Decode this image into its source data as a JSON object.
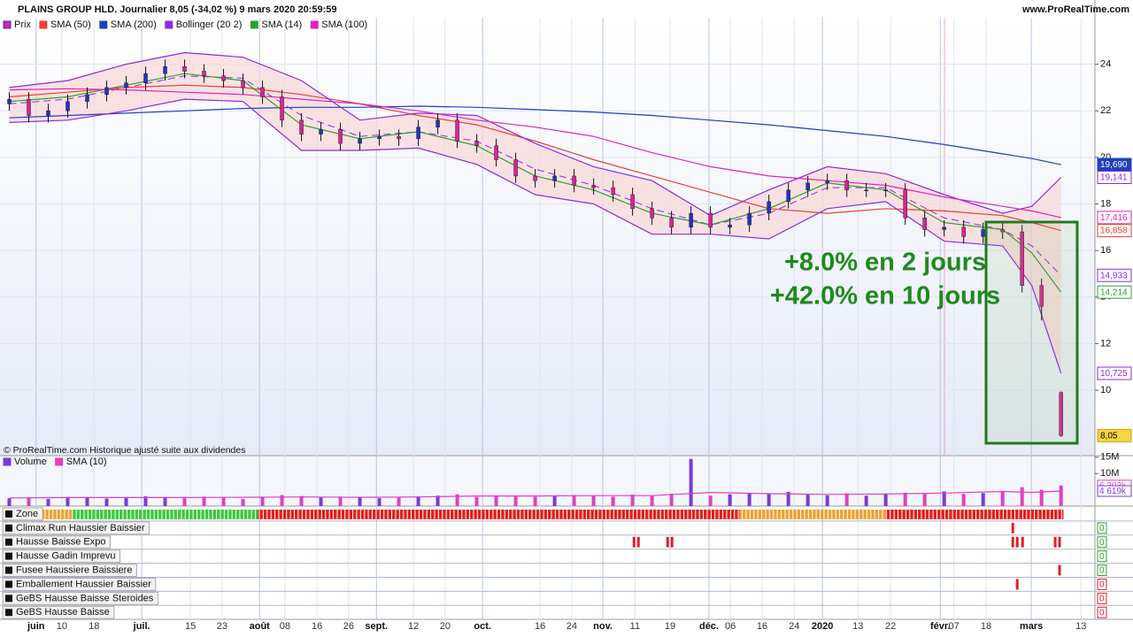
{
  "header": {
    "title": "PLAINS GROUP HLD. Journalier 8,05 (-34,02 %) 9 mars 2020 20:59:59",
    "site": "www.ProRealTime.com"
  },
  "chart_data": [
    {
      "type": "candlestick",
      "name": "Prix",
      "colors": {
        "up": "#2330c8",
        "down": "#e0209a"
      },
      "x": [
        1,
        5,
        9,
        13,
        17,
        21,
        25,
        29,
        33,
        37,
        41,
        45,
        49,
        53,
        57,
        61,
        65,
        69,
        73,
        77,
        81,
        85,
        89,
        93,
        97,
        101,
        105,
        109,
        113,
        117,
        121,
        125,
        129,
        133,
        137,
        141,
        145,
        149,
        153,
        157,
        161,
        165,
        169,
        173,
        177,
        181,
        185,
        189,
        193,
        197,
        201,
        205,
        209,
        213,
        217
      ],
      "open": [
        22.3,
        22.5,
        21.8,
        22.0,
        22.4,
        22.7,
        23.0,
        23.2,
        23.6,
        23.9,
        23.7,
        23.5,
        23.3,
        23.0,
        22.6,
        21.6,
        21.0,
        21.2,
        20.6,
        20.8,
        20.9,
        20.8,
        21.3,
        21.6,
        20.7,
        20.5,
        19.9,
        19.2,
        19.0,
        19.2,
        18.8,
        18.7,
        18.4,
        17.8,
        17.4,
        17.0,
        17.6,
        17.0,
        17.1,
        17.6,
        18.1,
        18.6,
        18.9,
        19.0,
        18.6,
        18.6,
        18.6,
        17.4,
        16.9,
        17.0,
        16.6,
        16.9,
        16.8,
        14.5,
        9.9
      ],
      "high": [
        22.8,
        22.8,
        22.3,
        22.7,
        23.0,
        23.3,
        23.5,
        23.9,
        24.2,
        24.2,
        24.0,
        23.8,
        23.6,
        23.3,
        22.9,
        21.9,
        21.5,
        21.5,
        21.1,
        21.2,
        21.2,
        21.6,
        21.9,
        21.9,
        21.0,
        20.8,
        20.2,
        19.5,
        19.5,
        19.5,
        19.1,
        19.0,
        18.7,
        18.1,
        17.7,
        17.9,
        17.9,
        17.4,
        17.9,
        18.4,
        18.9,
        19.2,
        19.3,
        19.3,
        18.9,
        18.9,
        18.9,
        17.7,
        17.3,
        17.3,
        17.2,
        17.2,
        17.1,
        14.8,
        9.95
      ],
      "low": [
        22.0,
        21.5,
        21.5,
        21.7,
        22.1,
        22.4,
        22.7,
        22.9,
        23.3,
        23.4,
        23.2,
        23.0,
        22.7,
        22.3,
        21.3,
        20.7,
        20.7,
        20.3,
        20.3,
        20.5,
        20.5,
        20.5,
        21.0,
        20.4,
        20.2,
        19.6,
        18.9,
        18.7,
        18.7,
        18.5,
        18.4,
        18.1,
        17.5,
        17.1,
        16.7,
        16.7,
        16.7,
        16.7,
        16.8,
        17.3,
        17.8,
        18.3,
        18.6,
        18.3,
        18.3,
        18.3,
        17.1,
        16.6,
        16.6,
        16.3,
        16.3,
        16.5,
        14.2,
        13.0,
        8.0
      ],
      "close": [
        22.5,
        21.8,
        22.0,
        22.4,
        22.7,
        23.0,
        23.2,
        23.6,
        23.9,
        23.7,
        23.5,
        23.3,
        23.0,
        22.6,
        21.6,
        21.0,
        21.2,
        20.6,
        20.8,
        20.9,
        20.8,
        21.3,
        21.6,
        20.7,
        20.5,
        19.9,
        19.2,
        19.0,
        19.2,
        18.8,
        18.7,
        18.4,
        17.8,
        17.4,
        17.0,
        17.6,
        17.0,
        17.1,
        17.6,
        18.1,
        18.6,
        18.9,
        19.0,
        18.6,
        18.6,
        18.6,
        17.4,
        16.9,
        17.0,
        16.6,
        16.9,
        16.8,
        14.5,
        13.6,
        8.05
      ],
      "lines": {
        "x": [
          1,
          13,
          25,
          37,
          49,
          61,
          73,
          85,
          97,
          109,
          121,
          133,
          145,
          157,
          169,
          181,
          193,
          205,
          211,
          217
        ],
        "series": [
          {
            "name": "SMA (50)",
            "color": "#e84030",
            "values": [
              22.6,
              22.8,
              23.0,
              23.1,
              23.0,
              22.7,
              22.3,
              21.8,
              21.4,
              20.7,
              19.9,
              19.2,
              18.5,
              17.8,
              17.6,
              17.8,
              17.7,
              17.5,
              17.2,
              16.858
            ]
          },
          {
            "name": "SMA (200)",
            "color": "#1f3fbf",
            "values": [
              21.7,
              21.8,
              21.9,
              22.0,
              22.1,
              22.15,
              22.15,
              22.2,
              22.15,
              22.05,
              21.95,
              21.8,
              21.6,
              21.4,
              21.15,
              20.9,
              20.55,
              20.15,
              19.95,
              19.69
            ]
          },
          {
            "name": "Bollinger (20 2)",
            "color": "#8a2be2",
            "fill": "#f8d8d8",
            "values": [
              22.3,
              22.5,
              23.0,
              23.5,
              23.4,
              21.8,
              20.9,
              21.1,
              20.7,
              19.5,
              18.8,
              17.8,
              17.1,
              17.6,
              18.7,
              18.7,
              17.4,
              16.9,
              16.2,
              14.933
            ],
            "upper": [
              23.0,
              23.3,
              24.0,
              24.5,
              24.3,
              23.3,
              21.6,
              21.9,
              21.8,
              20.6,
              19.6,
              19.0,
              17.5,
              18.6,
              19.6,
              19.3,
              18.4,
              17.6,
              17.9,
              19.141
            ],
            "lower": [
              21.5,
              21.6,
              22.0,
              22.5,
              22.4,
              20.3,
              20.3,
              20.4,
              19.7,
              18.4,
              18.0,
              16.7,
              16.7,
              16.5,
              17.8,
              18.1,
              16.4,
              16.2,
              14.5,
              10.725
            ]
          },
          {
            "name": "SMA (14)",
            "color": "#2ca02c",
            "values": [
              22.4,
              22.6,
              23.1,
              23.6,
              23.3,
              21.4,
              20.8,
              21.1,
              20.5,
              19.2,
              18.6,
              17.6,
              17.1,
              17.8,
              18.9,
              18.6,
              17.2,
              16.9,
              15.9,
              14.214
            ]
          },
          {
            "name": "SMA (100)",
            "color": "#e020c0",
            "values": [
              22.9,
              22.95,
              22.9,
              22.8,
              22.7,
              22.5,
              22.3,
              22.0,
              21.6,
              21.3,
              20.9,
              20.2,
              19.6,
              19.2,
              19.0,
              18.8,
              18.3,
              17.9,
              17.7,
              17.416
            ]
          }
        ]
      },
      "xlim": [
        0,
        223.6
      ],
      "xticks": [
        {
          "value": 6.5,
          "label": "juin",
          "major": true
        },
        {
          "value": 11.8,
          "label": "10"
        },
        {
          "value": 18.4,
          "label": "18"
        },
        {
          "value": 28.2,
          "label": "juil.",
          "major": true
        },
        {
          "value": 38.2,
          "label": "15"
        },
        {
          "value": 44.7,
          "label": "23"
        },
        {
          "value": 52.4,
          "label": "août",
          "major": true
        },
        {
          "value": 57.6,
          "label": "08"
        },
        {
          "value": 64.2,
          "label": "16"
        },
        {
          "value": 70.7,
          "label": "26"
        },
        {
          "value": 76.4,
          "label": "sept.",
          "major": true
        },
        {
          "value": 84.0,
          "label": "12"
        },
        {
          "value": 90.5,
          "label": "20"
        },
        {
          "value": 98.2,
          "label": "oct.",
          "major": true
        },
        {
          "value": 110.0,
          "label": "16"
        },
        {
          "value": 116.5,
          "label": "24"
        },
        {
          "value": 122.9,
          "label": "nov.",
          "major": true
        },
        {
          "value": 129.5,
          "label": "11"
        },
        {
          "value": 136.7,
          "label": "19"
        },
        {
          "value": 144.7,
          "label": "déc.",
          "major": true
        },
        {
          "value": 149.1,
          "label": "06"
        },
        {
          "value": 155.6,
          "label": "16"
        },
        {
          "value": 162.2,
          "label": "24"
        },
        {
          "value": 168.0,
          "label": "2020",
          "major": true
        },
        {
          "value": 175.3,
          "label": "13"
        },
        {
          "value": 182.0,
          "label": "22"
        },
        {
          "value": 192.2,
          "label": "févr.",
          "major": true
        },
        {
          "value": 195.0,
          "label": "07"
        },
        {
          "value": 201.6,
          "label": "18"
        },
        {
          "value": 210.9,
          "label": "mars",
          "major": true
        },
        {
          "value": 221.1,
          "label": "13"
        }
      ],
      "ylim": [
        7.19,
        26.0
      ],
      "yticks": [
        10,
        12,
        14,
        16,
        18,
        20,
        22,
        24
      ],
      "grid": true,
      "price_labels": [
        {
          "value": 19.69,
          "label": "19,690",
          "color": "#1f3fbf",
          "filled": true
        },
        {
          "value": 19.141,
          "label": "19,141",
          "color": "#8a2be2"
        },
        {
          "value": 17.416,
          "label": "17,416",
          "color": "#e020c0"
        },
        {
          "value": 16.858,
          "label": "16,858",
          "color": "#e84030"
        },
        {
          "value": 14.933,
          "label": "14,933",
          "color": "#8a2be2"
        },
        {
          "value": 14.214,
          "label": "14,214",
          "color": "#2ca02c"
        },
        {
          "value": 10.725,
          "label": "10,725",
          "color": "#8a2be2"
        },
        {
          "value": 8.05,
          "label": "8,05",
          "color": "#c8a000",
          "filled": true,
          "fill": "#f5d742"
        }
      ],
      "annotations": [
        "+8.0% en 2 jours",
        "+42.0% en 10 jours"
      ],
      "annotation_color": "#1f8a1f",
      "footnote": "© ProRealTime.com  Historique ajusté suite aux dividendes"
    },
    {
      "type": "bar",
      "series": [
        {
          "name": "Volume",
          "color": "#7a3ad8",
          "values": [
            2.4,
            2.6,
            2.2,
            2.8,
            2.5,
            2.3,
            2.7,
            3.0,
            2.6,
            2.4,
            2.9,
            2.5,
            2.2,
            2.8,
            3.4,
            3.1,
            2.6,
            2.9,
            2.7,
            2.4,
            2.6,
            3.0,
            3.2,
            3.6,
            2.8,
            3.1,
            3.3,
            2.9,
            3.0,
            3.4,
            3.2,
            2.9,
            3.5,
            3.1,
            3.8,
            14.5,
            3.2,
            3.6,
            4.0,
            3.8,
            4.4,
            3.5,
            3.3,
            3.9,
            3.2,
            3.6,
            4.1,
            3.8,
            4.5,
            3.7,
            4.0,
            4.6,
            5.8,
            5.0,
            6.303
          ]
        },
        {
          "name": "SMA (10)",
          "color": "#e040c0",
          "values": [
            2.5,
            2.6,
            2.6,
            2.6,
            2.7,
            2.8,
            2.7,
            2.8,
            3.1,
            3.1,
            3.2,
            3.2,
            4.2,
            3.8,
            3.6,
            3.7,
            4.0,
            4.5,
            4.2,
            4.619
          ]
        }
      ],
      "ylim": [
        0,
        15.5
      ],
      "yticks": [
        {
          "value": 15,
          "label": "15M"
        },
        {
          "value": 10,
          "label": "10M"
        }
      ],
      "last_labels": [
        {
          "value": 6.303,
          "label": "6 303k",
          "color": "#e040c0"
        },
        {
          "value": 4.619,
          "label": "4 619k",
          "color": "#7a3ad8"
        }
      ]
    }
  ],
  "indicators": {
    "zone": {
      "name": "Zone",
      "segments": [
        {
          "from": 0.5,
          "to": 14,
          "color": "#f0a030"
        },
        {
          "from": 14,
          "to": 52,
          "color": "#3cc83c"
        },
        {
          "from": 52,
          "to": 151,
          "color": "#e02020"
        },
        {
          "from": 151,
          "to": 181,
          "color": "#f0a030"
        },
        {
          "from": 181,
          "to": 217.5,
          "color": "#e02020"
        }
      ]
    },
    "signal_color": "#e0202a",
    "rows": [
      {
        "name": "Climax Run Haussier Baissier",
        "signals": [
          207.1
        ],
        "value": 0,
        "color": "#2ca02c"
      },
      {
        "name": "Hausse Baisse Expo",
        "signals": [
          129.3,
          130.2,
          136.2,
          137.1,
          207.1,
          208.0,
          209.1,
          215.8,
          216.7
        ],
        "value": 0,
        "color": "#2ca02c"
      },
      {
        "name": "Hausse Gadin Imprevu",
        "signals": [],
        "value": 0,
        "color": "#2ca02c"
      },
      {
        "name": "Fusee Haussiere Baissiere",
        "signals": [
          216.7
        ],
        "value": 0,
        "color": "#2ca02c"
      },
      {
        "name": "Emballement Haussier Baissier",
        "signals": [
          208.0
        ],
        "value": 0,
        "color": "#e0202a"
      },
      {
        "name": "GeBS Hausse Baisse Steroides",
        "signals": [],
        "value": 0,
        "color": "#e0202a"
      },
      {
        "name": "GeBS Hausse Baisse",
        "signals": [],
        "value": 0,
        "color": "#e0202a"
      }
    ]
  }
}
